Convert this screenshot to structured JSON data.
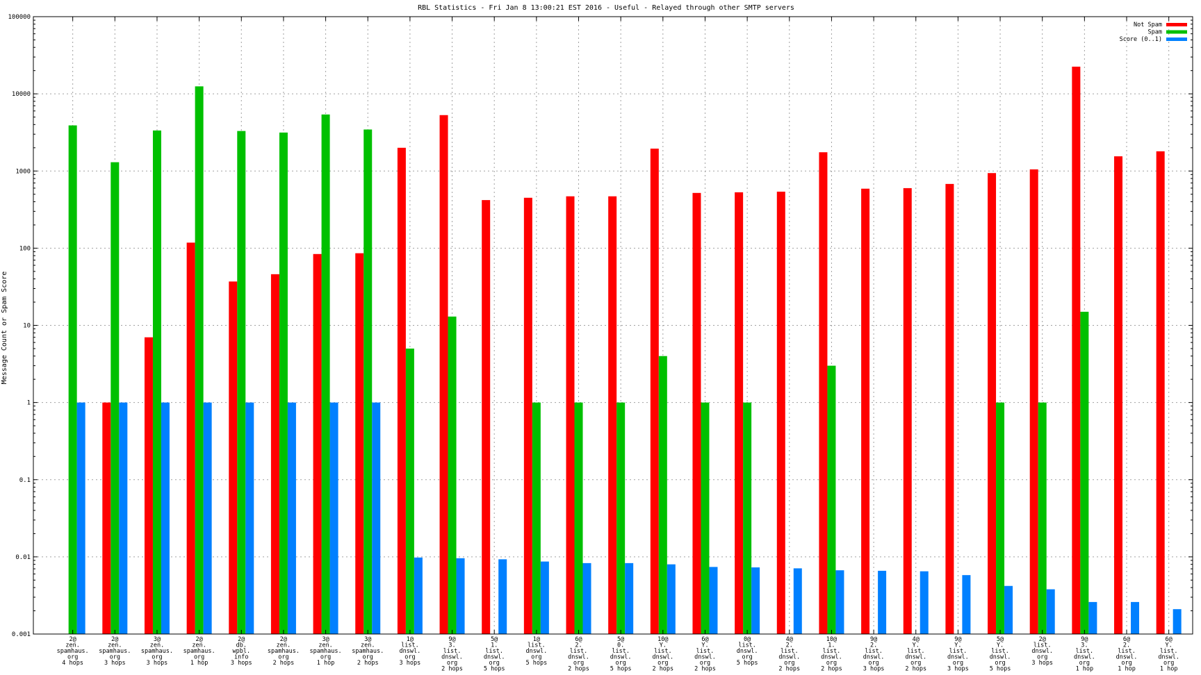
{
  "chart_data": {
    "type": "bar",
    "title": "RBL Statistics - Fri Jan  8 13:00:21 EST 2016 - Useful - Relayed through other SMTP servers",
    "ylabel": "Message Count or Spam Score",
    "xlabel": "",
    "yscale": "log",
    "ylim": [
      0.001,
      100000
    ],
    "y_ticks": [
      "100000",
      "10000",
      "1000",
      "100",
      "10",
      "1",
      "0.1",
      "0.01",
      "0.001"
    ],
    "grid": true,
    "legend_position": "top-right",
    "categories": [
      [
        "2@",
        "zen.",
        "spamhaus.",
        "org",
        "4 hops"
      ],
      [
        "2@",
        "zen.",
        "spamhaus.",
        "org",
        "3 hops"
      ],
      [
        "3@",
        "zen.",
        "spamhaus.",
        "org",
        "3 hops"
      ],
      [
        "2@",
        "zen.",
        "spamhaus.",
        "org",
        "1 hop"
      ],
      [
        "2@",
        "db.",
        "wpbl.",
        "info",
        "3 hops"
      ],
      [
        "2@",
        "zen.",
        "spamhaus.",
        "org",
        "2 hops"
      ],
      [
        "3@",
        "zen.",
        "spamhaus.",
        "org",
        "1 hop"
      ],
      [
        "3@",
        "zen.",
        "spamhaus.",
        "org",
        "2 hops"
      ],
      [
        "1@",
        "list.",
        "dnswl.",
        "org",
        "3 hops"
      ],
      [
        "9@",
        "3.",
        "list.",
        "dnswl.",
        "org",
        "2 hops"
      ],
      [
        "5@",
        "1.",
        "list.",
        "dnswl.",
        "org",
        "5 hops"
      ],
      [
        "1@",
        "list.",
        "dnswl.",
        "org",
        "5 hops"
      ],
      [
        "6@",
        "2.",
        "list.",
        "dnswl.",
        "org",
        "2 hops"
      ],
      [
        "5@",
        "0.",
        "list.",
        "dnswl.",
        "org",
        "5 hops"
      ],
      [
        "10@",
        "Y.",
        "list.",
        "dnswl.",
        "org",
        "2 hops"
      ],
      [
        "6@",
        "Y.",
        "list.",
        "dnswl.",
        "org",
        "2 hops"
      ],
      [
        "0@",
        "list.",
        "dnswl.",
        "org",
        "5 hops"
      ],
      [
        "4@",
        "2.",
        "list.",
        "dnswl.",
        "org",
        "2 hops"
      ],
      [
        "10@",
        "1.",
        "list.",
        "dnswl.",
        "org",
        "2 hops"
      ],
      [
        "9@",
        "2.",
        "list.",
        "dnswl.",
        "org",
        "3 hops"
      ],
      [
        "4@",
        "Y.",
        "list.",
        "dnswl.",
        "org",
        "2 hops"
      ],
      [
        "9@",
        "Y.",
        "list.",
        "dnswl.",
        "org",
        "3 hops"
      ],
      [
        "5@",
        "Y.",
        "list.",
        "dnswl.",
        "org",
        "5 hops"
      ],
      [
        "2@",
        "list.",
        "dnswl.",
        "org",
        "3 hops"
      ],
      [
        "9@",
        "3.",
        "list.",
        "dnswl.",
        "org",
        "1 hop"
      ],
      [
        "6@",
        "2.",
        "list.",
        "dnswl.",
        "org",
        "1 hop"
      ],
      [
        "6@",
        "Y.",
        "list.",
        "dnswl.",
        "org",
        "1 hop"
      ]
    ],
    "series": [
      {
        "name": "Not Spam",
        "color": "#ff0000",
        "values": [
          null,
          1,
          7,
          118,
          37,
          46,
          84,
          86,
          2000,
          5300,
          420,
          450,
          470,
          470,
          1950,
          520,
          530,
          540,
          1750,
          590,
          600,
          680,
          940,
          1050,
          22500,
          1550,
          1800
        ]
      },
      {
        "name": "Spam",
        "color": "#00c000",
        "values": [
          3900,
          1300,
          3350,
          12500,
          3300,
          3150,
          5400,
          3450,
          5,
          13,
          null,
          1,
          1,
          1,
          4,
          1,
          1,
          null,
          3,
          null,
          null,
          null,
          1,
          1,
          15,
          null,
          null
        ]
      },
      {
        "name": "Score (0..1)",
        "color": "#0080ff",
        "values": [
          1,
          1,
          1,
          1,
          1,
          1,
          1,
          1,
          0.0098,
          0.0096,
          0.0093,
          0.0087,
          0.0083,
          0.0083,
          0.008,
          0.0074,
          0.0073,
          0.0071,
          0.0067,
          0.0066,
          0.0065,
          0.0058,
          0.0042,
          0.0038,
          0.0026,
          0.0026,
          0.0021
        ]
      }
    ]
  }
}
